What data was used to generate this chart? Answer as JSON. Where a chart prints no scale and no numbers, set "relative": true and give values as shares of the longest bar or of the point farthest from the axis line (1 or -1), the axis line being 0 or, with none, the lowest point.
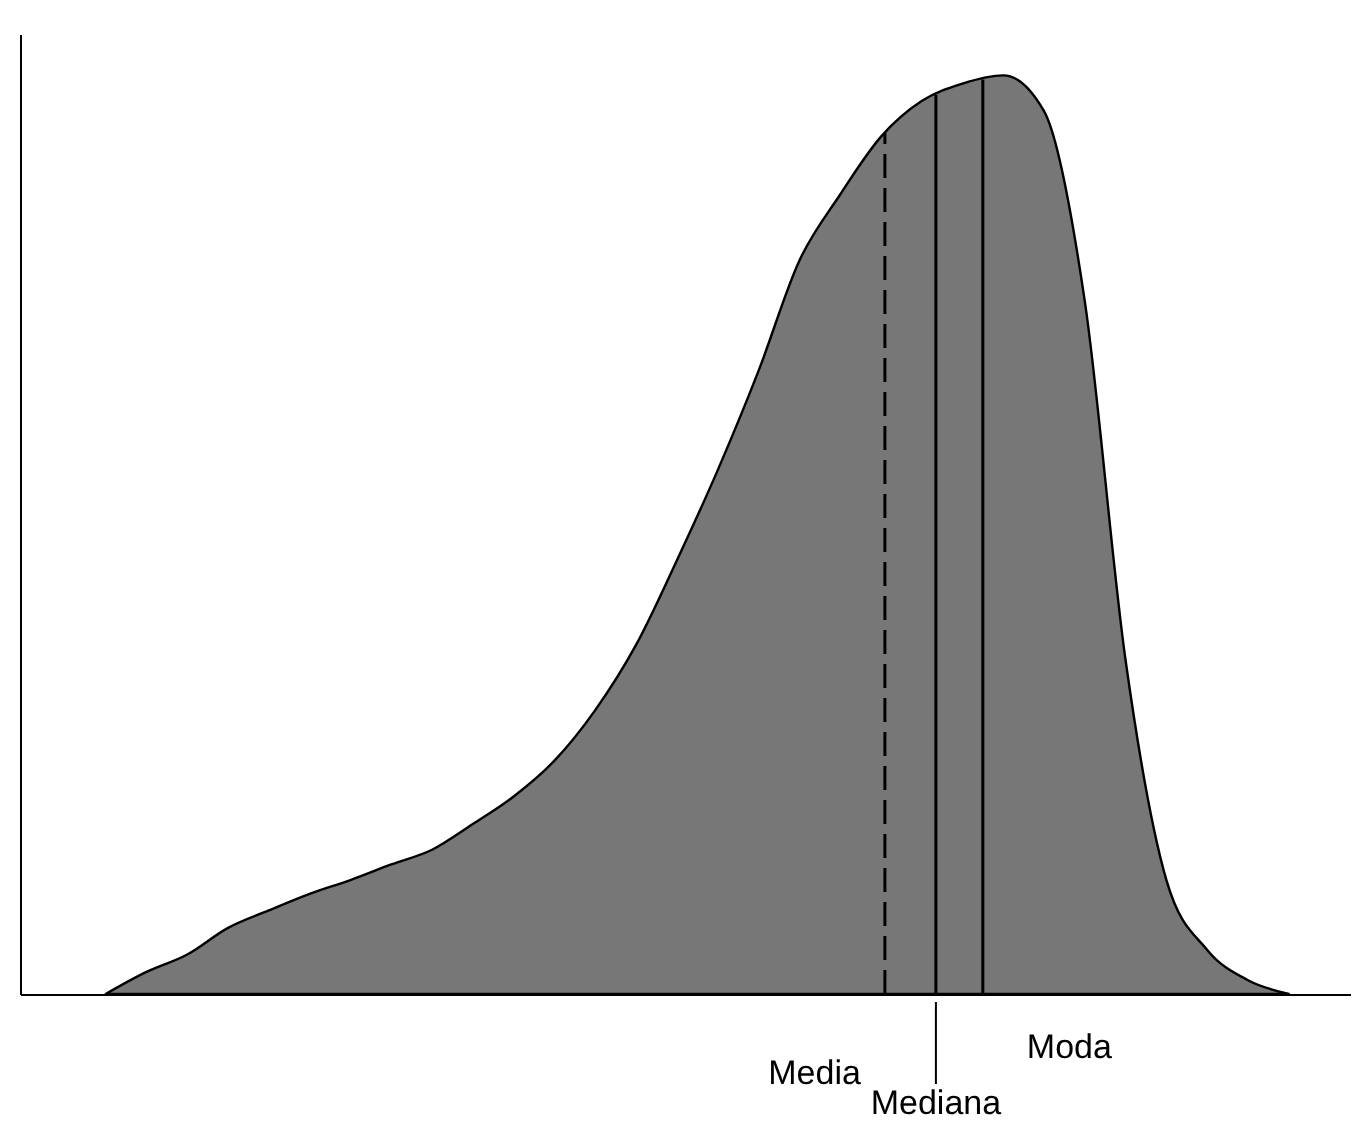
{
  "chart_data": {
    "type": "area",
    "relative": true,
    "color": "#777777",
    "grid": false,
    "tick_labels": false,
    "categories": [
      null,
      null,
      null,
      null,
      null,
      null,
      null,
      null,
      null,
      null,
      null,
      null,
      null,
      null,
      null,
      null,
      null,
      null,
      null,
      null,
      null,
      null,
      null,
      null,
      null,
      null,
      null,
      null,
      null,
      null
    ],
    "values": [
      0,
      0.024,
      0.043,
      0.072,
      0.091,
      0.109,
      0.124,
      0.141,
      0.157,
      0.185,
      0.215,
      0.254,
      0.309,
      0.38,
      0.472,
      0.57,
      0.678,
      0.798,
      0.87,
      0.933,
      0.972,
      0.991,
      1.0,
      0.961,
      0.754,
      0.363,
      0.124,
      0.048,
      0.015,
      0
    ],
    "annotations": [
      "Media",
      "Mediana",
      "Moda"
    ]
  }
}
